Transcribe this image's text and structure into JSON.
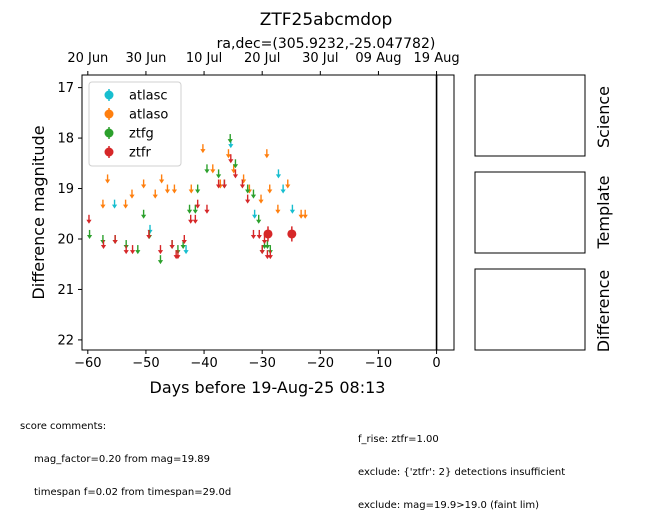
{
  "chart_data": {
    "type": "scatter",
    "title": "ZTF25abcmdop",
    "subtitle": "ra,dec=(305.9232,-25.047782)",
    "xlabel": "Days before 19-Aug-25 08:13",
    "ylabel": "Difference magnitude",
    "xlim": [
      -61,
      3
    ],
    "ylim": [
      22.2,
      16.75
    ],
    "y_inverted": true,
    "x_ticks": [
      -60,
      -50,
      -40,
      -30,
      -20,
      -10,
      0
    ],
    "x_tick_labels": [
      "−60",
      "−50",
      "−40",
      "−30",
      "−20",
      "−10",
      "0"
    ],
    "y_ticks": [
      17,
      18,
      19,
      20,
      21,
      22
    ],
    "y_tick_labels": [
      "17",
      "18",
      "19",
      "20",
      "21",
      "22"
    ],
    "top_axis": {
      "ticks": [
        -60,
        -50,
        -40,
        -30,
        -20,
        -10,
        0
      ],
      "labels": [
        "20 Jun",
        "30 Jun",
        "10 Jul",
        "20 Jul",
        "30 Jul",
        "09 Aug",
        "19 Aug"
      ]
    },
    "vline_x": 0,
    "legend_position": "upper-left",
    "series": [
      {
        "name": "atlasc",
        "color": "#17becf",
        "marker": "limit",
        "points": [
          [
            -55.4,
            19.3
          ],
          [
            -49.3,
            19.8
          ],
          [
            -43.1,
            20.2
          ],
          [
            -35.4,
            18.1
          ],
          [
            -31.3,
            19.5
          ],
          [
            -27.2,
            18.7
          ],
          [
            -26.4,
            19.0
          ],
          [
            -24.8,
            19.4
          ]
        ]
      },
      {
        "name": "atlaso",
        "color": "#ff7f0e",
        "marker": "limit",
        "points": [
          [
            -57.4,
            19.3
          ],
          [
            -56.6,
            18.8
          ],
          [
            -53.5,
            19.3
          ],
          [
            -52.4,
            19.1
          ],
          [
            -50.4,
            18.9
          ],
          [
            -48.4,
            19.1
          ],
          [
            -47.3,
            18.8
          ],
          [
            -46.3,
            19.0
          ],
          [
            -45.1,
            19.0
          ],
          [
            -42.2,
            19.0
          ],
          [
            -40.2,
            18.2
          ],
          [
            -38.5,
            18.6
          ],
          [
            -37.2,
            18.9
          ],
          [
            -35.8,
            18.3
          ],
          [
            -34.9,
            18.6
          ],
          [
            -33.2,
            18.8
          ],
          [
            -32.2,
            19.0
          ],
          [
            -30.2,
            19.2
          ],
          [
            -29.2,
            18.3
          ],
          [
            -28.7,
            19.0
          ],
          [
            -27.3,
            19.4
          ],
          [
            -25.6,
            18.9
          ],
          [
            -23.3,
            19.5
          ],
          [
            -22.6,
            19.5
          ]
        ]
      },
      {
        "name": "ztfg",
        "color": "#2ca02c",
        "marker": "limit",
        "points": [
          [
            -59.7,
            19.9
          ],
          [
            -57.4,
            20.0
          ],
          [
            -55.3,
            20.0
          ],
          [
            -53.4,
            20.1
          ],
          [
            -51.4,
            20.2
          ],
          [
            -50.4,
            19.5
          ],
          [
            -49.4,
            19.9
          ],
          [
            -47.5,
            20.4
          ],
          [
            -45.5,
            20.1
          ],
          [
            -44.5,
            20.2
          ],
          [
            -43.6,
            20.1
          ],
          [
            -42.5,
            19.4
          ],
          [
            -41.5,
            19.4
          ],
          [
            -41.1,
            19.0
          ],
          [
            -39.5,
            18.6
          ],
          [
            -37.5,
            18.7
          ],
          [
            -36.5,
            18.9
          ],
          [
            -35.5,
            18.0
          ],
          [
            -34.6,
            18.5
          ],
          [
            -32.5,
            19.0
          ],
          [
            -31.5,
            19.1
          ],
          [
            -30.6,
            19.6
          ],
          [
            -30.0,
            20.2
          ],
          [
            -29.6,
            20.1
          ],
          [
            -29.1,
            20.1
          ],
          [
            -28.6,
            20.2
          ]
        ]
      },
      {
        "name": "ztfr",
        "color": "#d62728",
        "marker": "limit",
        "points": [
          [
            -59.8,
            19.6
          ],
          [
            -57.3,
            20.1
          ],
          [
            -55.3,
            20.0
          ],
          [
            -53.4,
            20.2
          ],
          [
            -52.3,
            20.2
          ],
          [
            -49.5,
            19.9
          ],
          [
            -47.5,
            20.2
          ],
          [
            -45.5,
            20.1
          ],
          [
            -44.8,
            20.3
          ],
          [
            -44.5,
            20.3
          ],
          [
            -43.4,
            20.0
          ],
          [
            -42.3,
            19.6
          ],
          [
            -41.5,
            19.6
          ],
          [
            -41.1,
            19.3
          ],
          [
            -39.5,
            19.4
          ],
          [
            -37.5,
            18.9
          ],
          [
            -36.5,
            18.9
          ],
          [
            -35.4,
            18.4
          ],
          [
            -34.6,
            18.7
          ],
          [
            -33.4,
            18.9
          ],
          [
            -32.5,
            19.2
          ],
          [
            -31.5,
            19.9
          ],
          [
            -30.5,
            19.9
          ],
          [
            -30.0,
            20.2
          ],
          [
            -29.6,
            20.0
          ],
          [
            -29.1,
            20.3
          ],
          [
            -28.6,
            20.3
          ]
        ]
      },
      {
        "name": "ztfr",
        "color": "#d62728",
        "marker": "detection",
        "legend": false,
        "points": [
          [
            -29.0,
            19.9,
            0.15
          ],
          [
            -24.9,
            19.9,
            0.15
          ]
        ]
      }
    ],
    "cutout_labels": [
      "Science",
      "Template",
      "Difference"
    ]
  },
  "score_comments": {
    "heading": "score comments:",
    "left": [
      "mag_factor=0.20 from mag=19.89",
      "timespan f=0.02 from timespan=29.0d"
    ],
    "right": [
      "f_rise: ztfr=1.00",
      "exclude: {'ztfr': 2} detections insufficient",
      "exclude: mag=19.9>19.0 (faint lim)"
    ]
  }
}
